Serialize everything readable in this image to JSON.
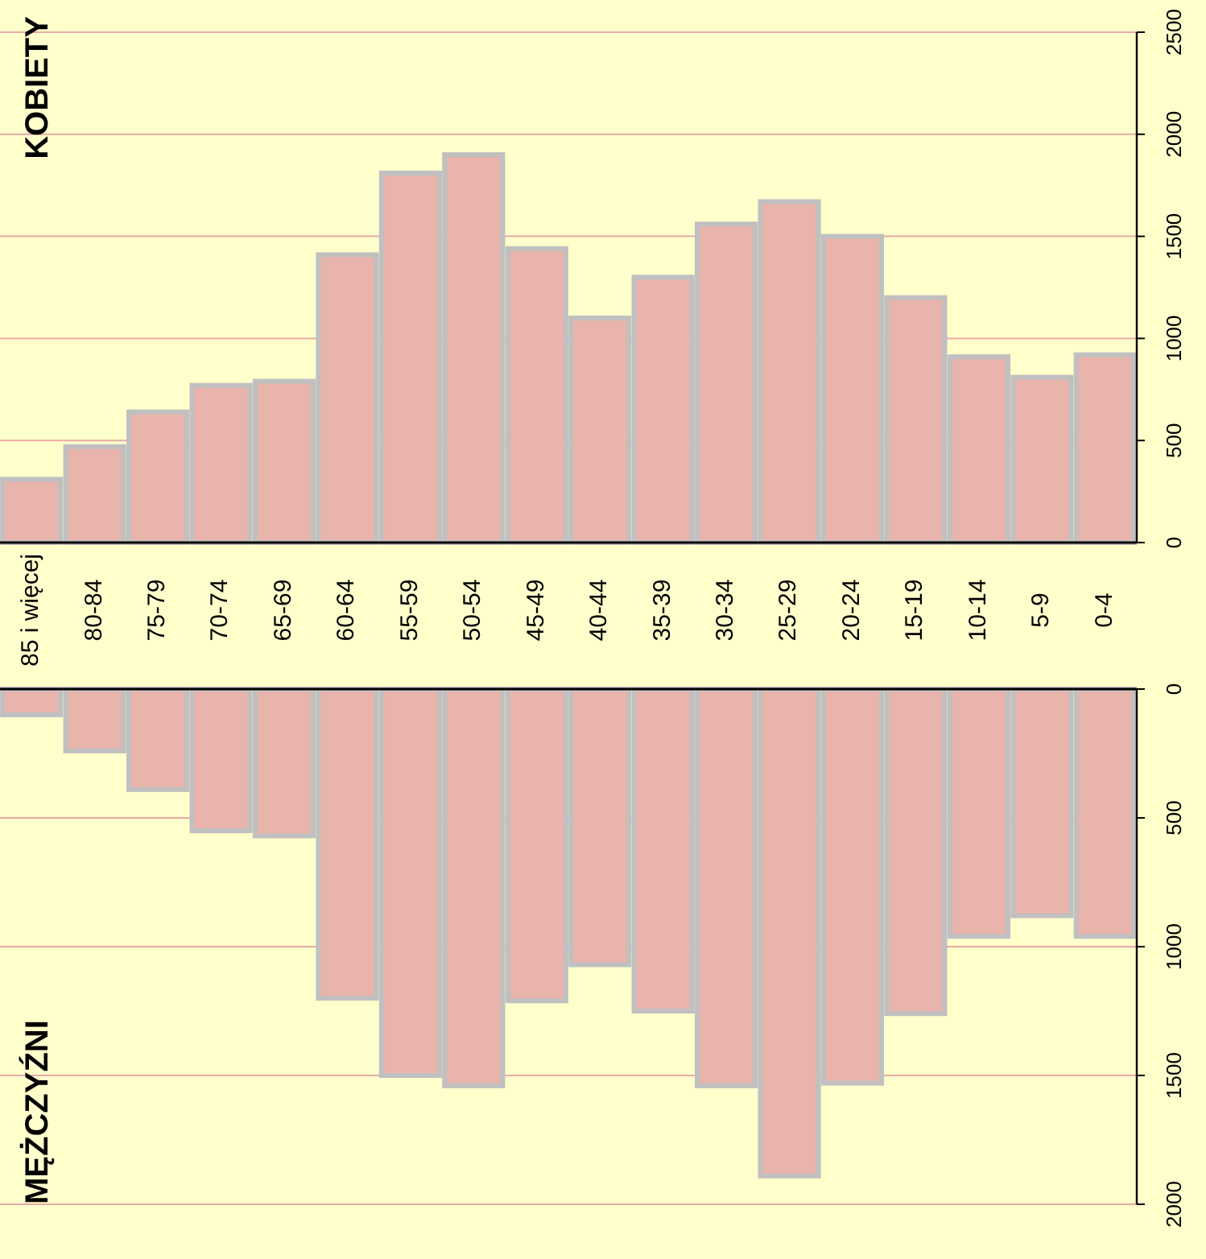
{
  "chart_data": [
    {
      "type": "bar",
      "title": "KOBIETY",
      "categories": [
        "85 i więcej",
        "80-84",
        "75-79",
        "70-74",
        "65-69",
        "60-64",
        "55-59",
        "50-54",
        "45-49",
        "40-44",
        "35-39",
        "30-34",
        "25-29",
        "20-24",
        "15-19",
        "10-14",
        "5-9",
        "0-4"
      ],
      "values": [
        310,
        470,
        640,
        770,
        790,
        1410,
        1810,
        1900,
        1440,
        1100,
        1300,
        1560,
        1670,
        1500,
        1200,
        910,
        810,
        920
      ],
      "color": "#e8b4ac",
      "ylim": [
        0,
        2500
      ],
      "yticks": [
        0,
        500,
        1000,
        1500,
        2000,
        2500
      ],
      "grid": "y"
    },
    {
      "type": "bar",
      "title": "MĘŻCZYŹNI",
      "categories": [
        "85 i więcej",
        "80-84",
        "75-79",
        "70-74",
        "65-69",
        "60-64",
        "55-59",
        "50-54",
        "45-49",
        "40-44",
        "35-39",
        "30-34",
        "25-29",
        "20-24",
        "15-19",
        "10-14",
        "5-9",
        "0-4"
      ],
      "values": [
        100,
        240,
        390,
        550,
        570,
        1200,
        1500,
        1540,
        1210,
        1070,
        1250,
        1540,
        1890,
        1530,
        1260,
        960,
        880,
        960
      ],
      "color": "#e8b4ac",
      "ylim": [
        2000,
        0
      ],
      "yticks": [
        0,
        500,
        1000,
        1500,
        2000
      ],
      "grid": "y",
      "tick_labels": "y"
    }
  ]
}
